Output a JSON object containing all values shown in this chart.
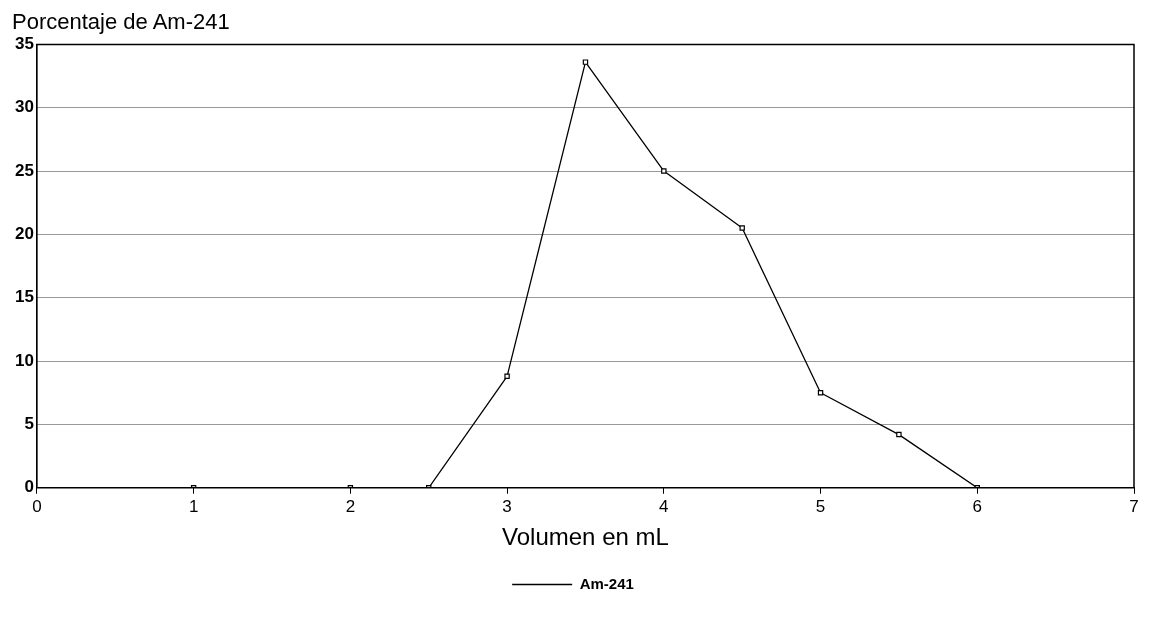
{
  "chart_data": {
    "type": "line",
    "ylabel": "Porcentaje de Am-241",
    "xlabel": "Volumen en mL",
    "x": [
      1,
      2,
      2.5,
      3,
      3.5,
      4,
      4.5,
      5,
      5.5,
      6
    ],
    "series": [
      {
        "name": "Am-241",
        "color": "#000000",
        "values": [
          0,
          0,
          0,
          8.8,
          33.6,
          25,
          20.5,
          7.5,
          4.2,
          0
        ]
      }
    ],
    "xlim": [
      0,
      7
    ],
    "xticks": [
      0,
      1,
      2,
      3,
      4,
      5,
      6,
      7
    ],
    "ylim": [
      0,
      35
    ],
    "yticks": [
      0,
      5,
      10,
      15,
      20,
      25,
      30,
      35
    ],
    "grid": "y",
    "legend": "bottom",
    "marker": "square",
    "line_style": "solid"
  }
}
